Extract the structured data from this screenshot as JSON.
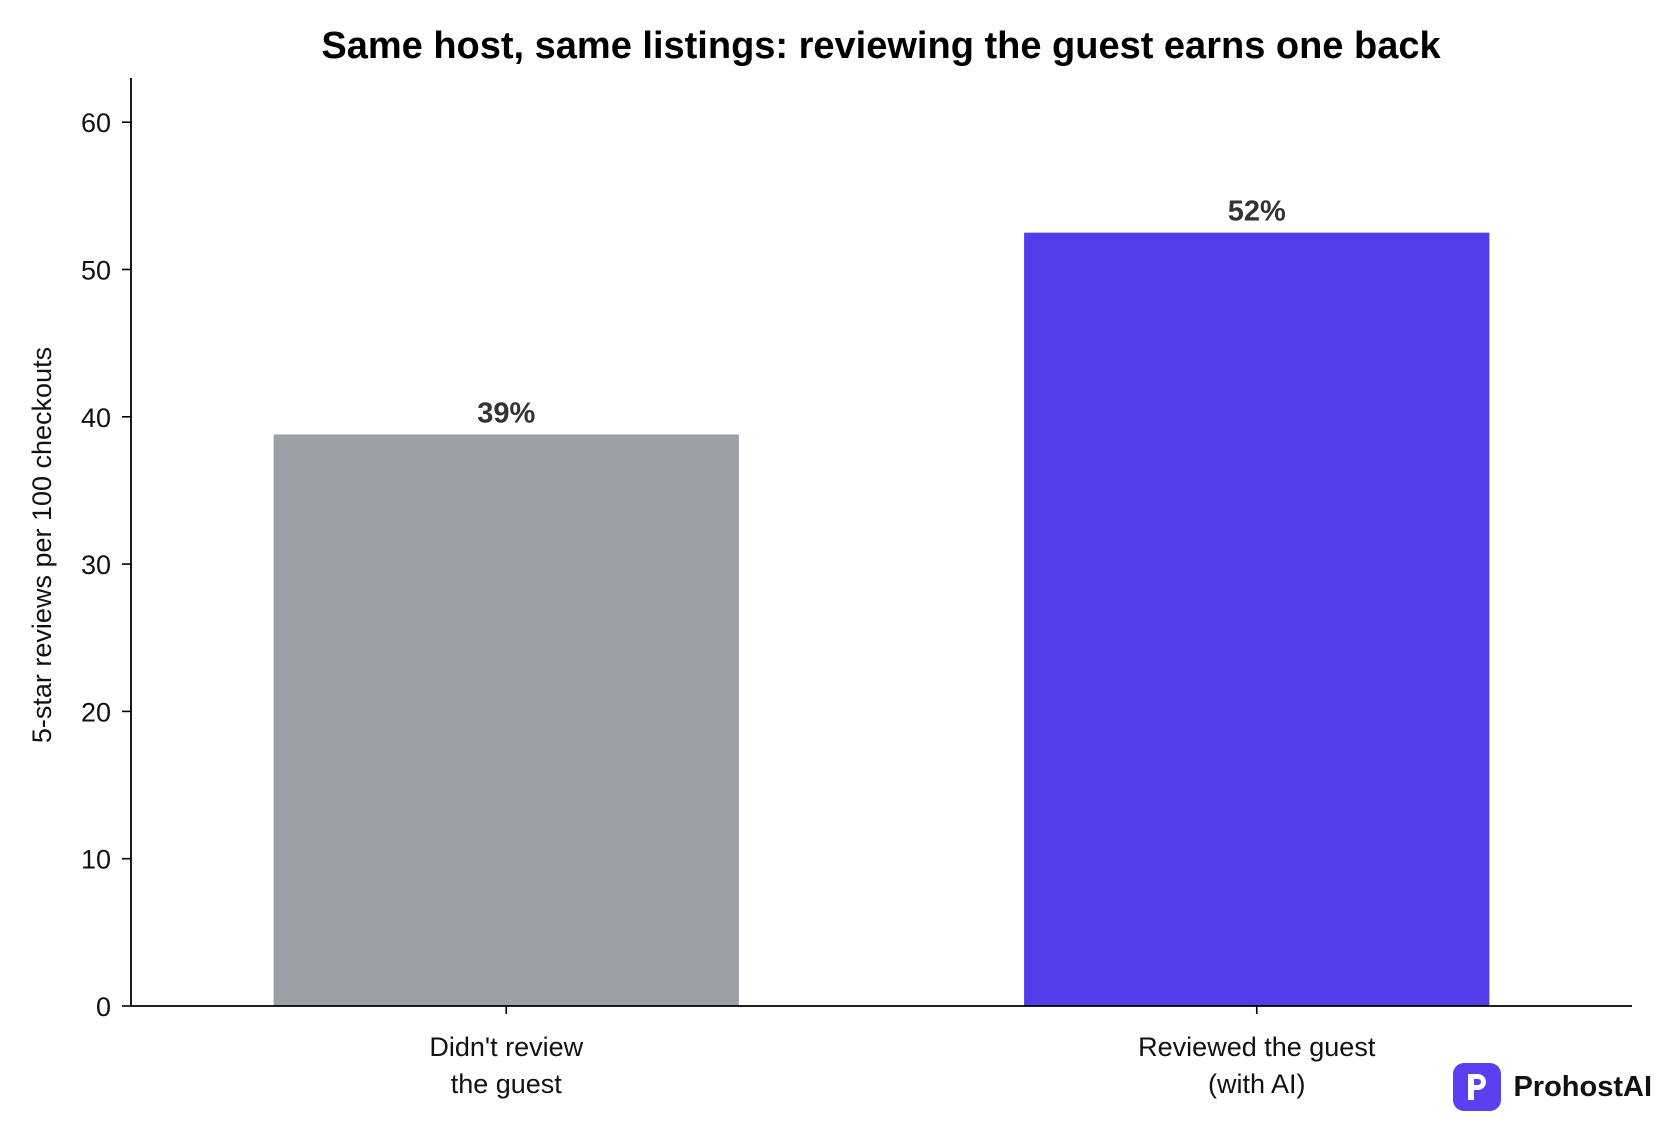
{
  "chart_data": {
    "type": "bar",
    "title": "Same host, same listings: reviewing the guest earns one back",
    "xlabel": "",
    "ylabel": "5-star reviews per 100 checkouts",
    "ylim": [
      0,
      63
    ],
    "yticks": [
      0,
      10,
      20,
      30,
      40,
      50,
      60
    ],
    "grid": false,
    "categories": [
      [
        "Didn't review",
        "the guest"
      ],
      [
        "Reviewed the guest",
        "(with AI)"
      ]
    ],
    "values": [
      38.8,
      52.5
    ],
    "data_labels": [
      "39%",
      "52%"
    ],
    "colors": [
      "#9ca1a8",
      "#523dea"
    ]
  },
  "brand": {
    "name": "ProhostAI",
    "icon": "p-logo-icon",
    "accent": "#5b3ff0"
  }
}
